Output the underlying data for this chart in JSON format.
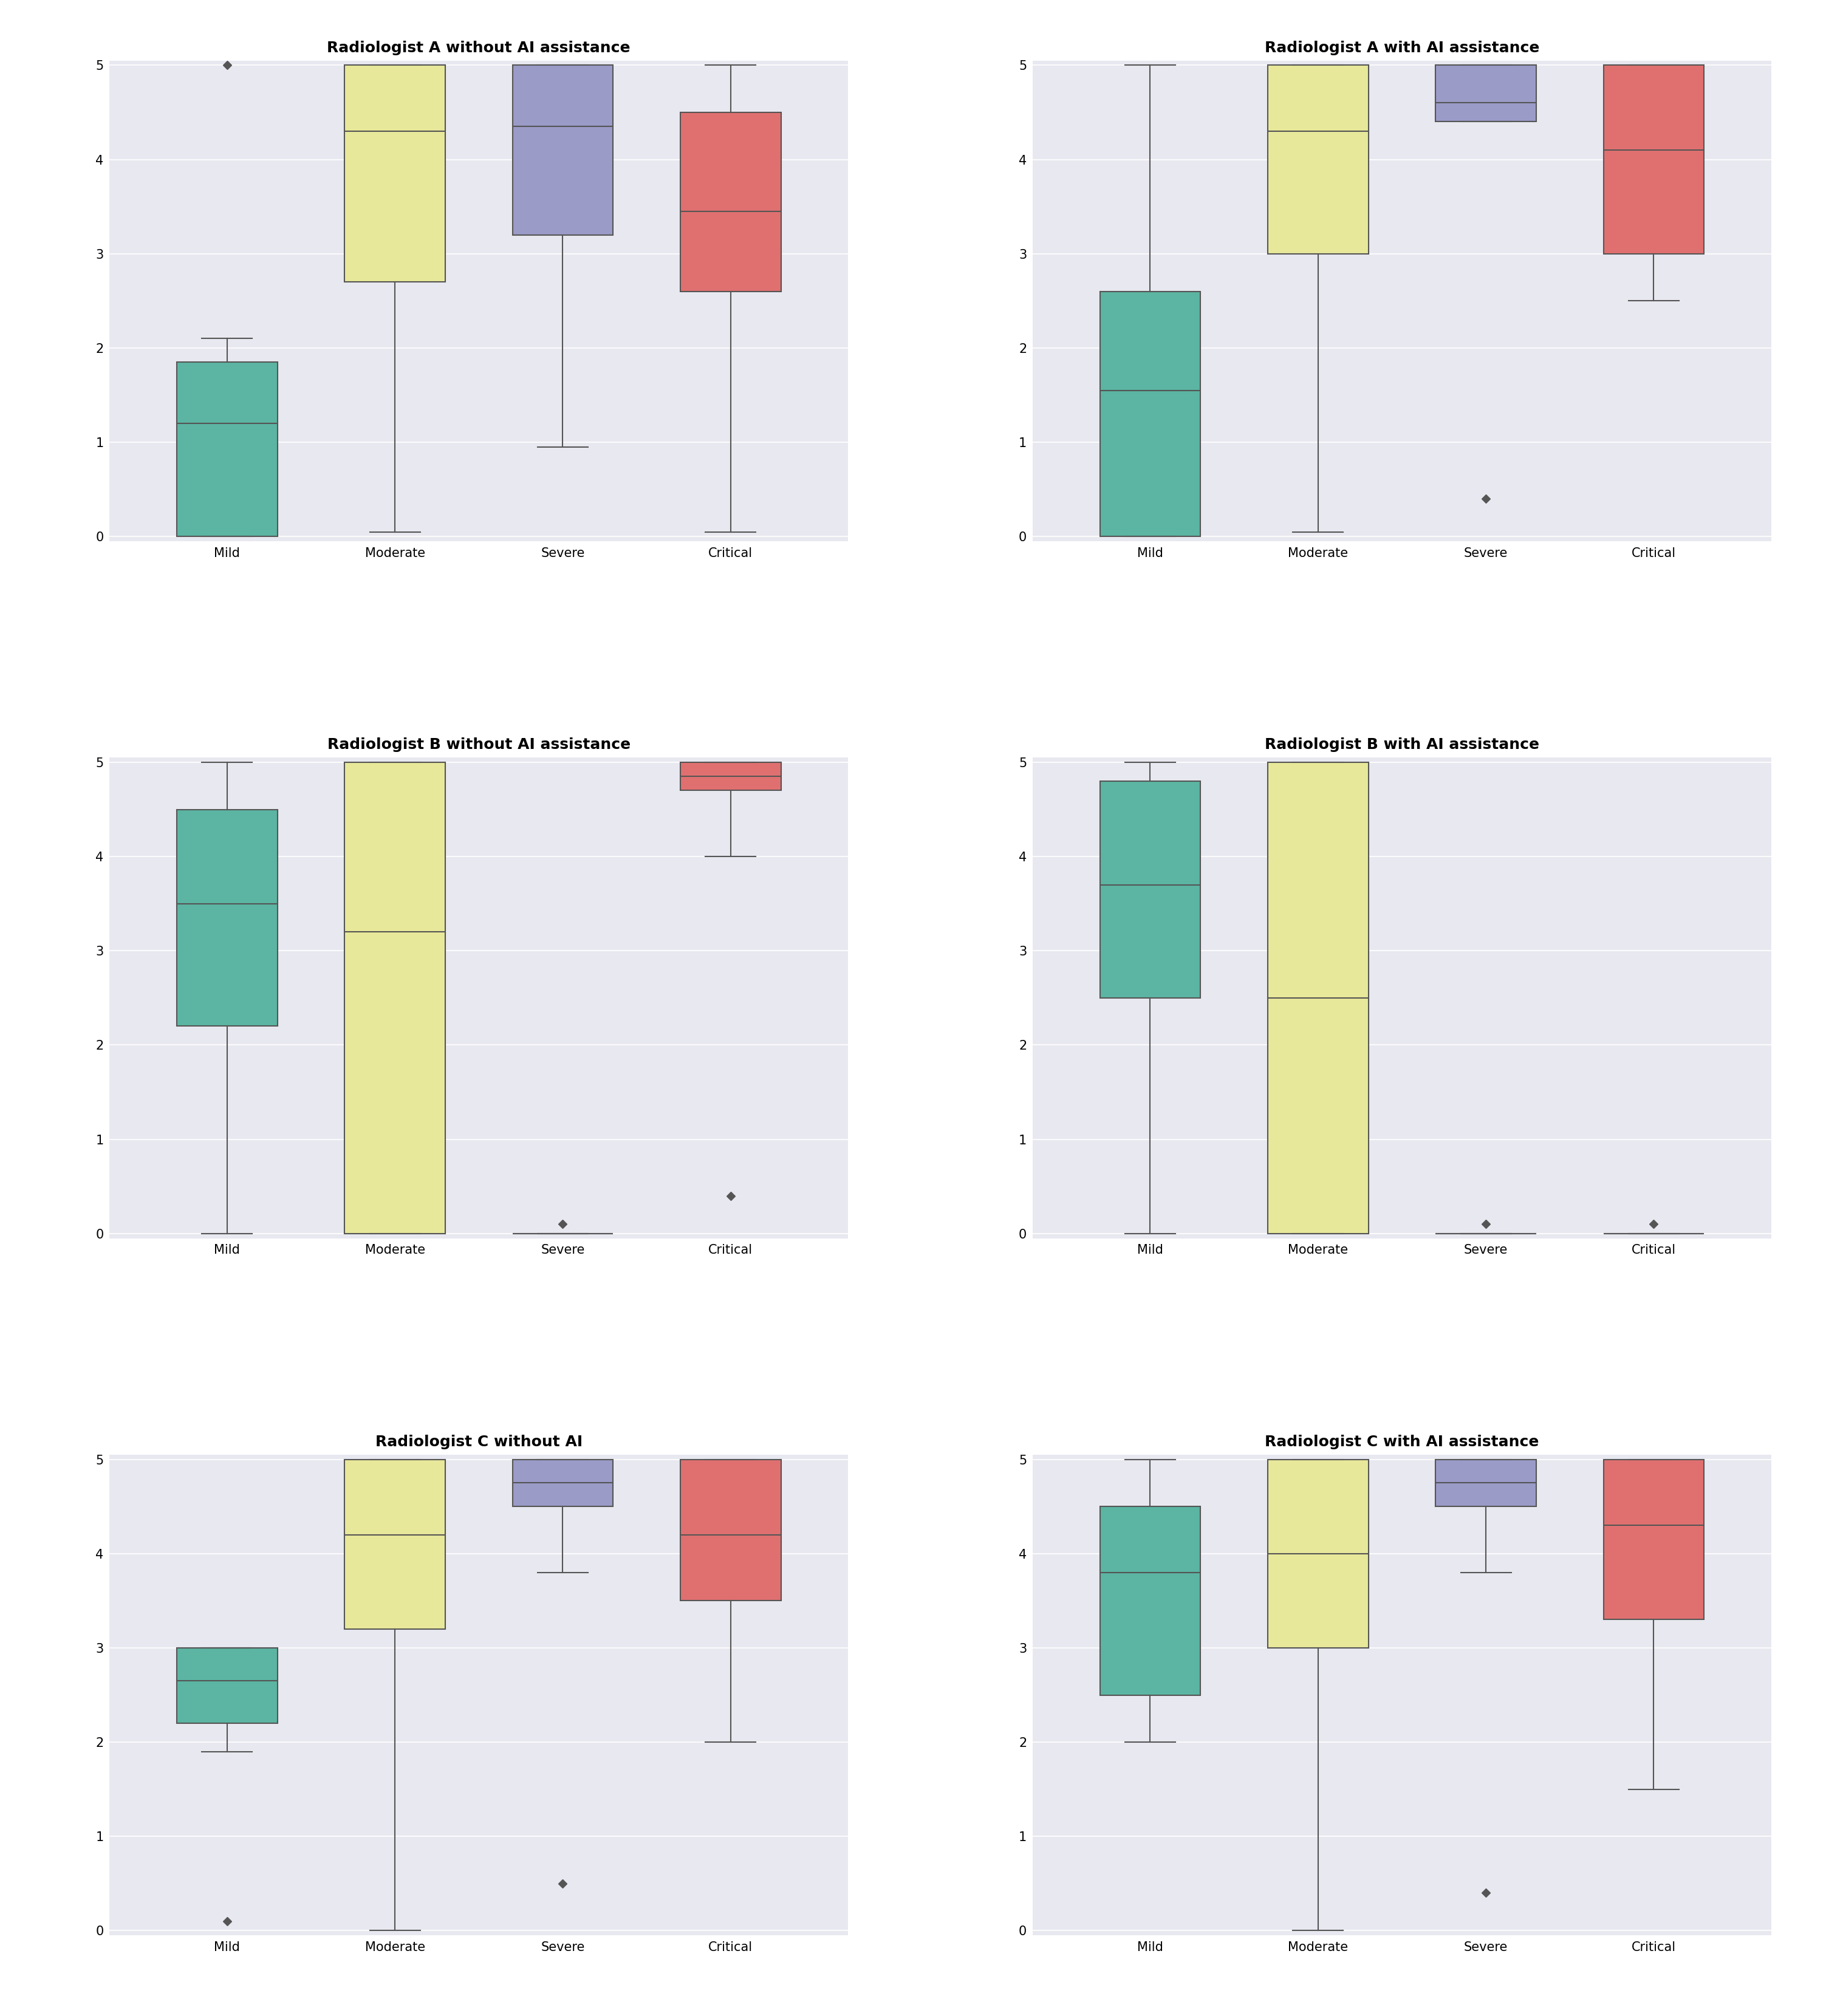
{
  "titles": [
    "Radiologist A without AI assistance",
    "Radiologist A with AI assistance",
    "Radiologist B without AI assistance",
    "Radiologist B with AI assistance",
    "Radiologist C without AI",
    "Radiologist C with AI assistance"
  ],
  "categories": [
    "Mild",
    "Moderate",
    "Severe",
    "Critical"
  ],
  "colors": [
    "#5bb5a2",
    "#e8e89a",
    "#9b9bc8",
    "#e07070"
  ],
  "background_color": "#e8e8f0",
  "box_edge_color": "#555555",
  "whisker_color": "#555555",
  "median_color": "#555555",
  "flier_color": "#555555",
  "plots": [
    {
      "name": "A_without",
      "mild": {
        "q1": 0.0,
        "median": 1.2,
        "q3": 1.85,
        "whislo": 0.0,
        "whishi": 2.1,
        "fliers": [
          5.0
        ]
      },
      "moderate": {
        "q1": 2.7,
        "median": 4.3,
        "q3": 5.0,
        "whislo": 0.05,
        "whishi": 5.0,
        "fliers": []
      },
      "severe": {
        "q1": 3.2,
        "median": 4.35,
        "q3": 5.0,
        "whislo": 0.95,
        "whishi": 5.0,
        "fliers": []
      },
      "critical": {
        "q1": 2.6,
        "median": 3.45,
        "q3": 4.5,
        "whislo": 0.05,
        "whishi": 5.0,
        "fliers": []
      }
    },
    {
      "name": "A_with",
      "mild": {
        "q1": 0.0,
        "median": 1.55,
        "q3": 2.6,
        "whislo": 0.0,
        "whishi": 5.0,
        "fliers": []
      },
      "moderate": {
        "q1": 3.0,
        "median": 4.3,
        "q3": 5.0,
        "whislo": 0.05,
        "whishi": 5.0,
        "fliers": []
      },
      "severe": {
        "q1": 4.4,
        "median": 4.6,
        "q3": 5.0,
        "whislo": 4.4,
        "whishi": 5.0,
        "fliers": [
          0.4
        ]
      },
      "critical": {
        "q1": 3.0,
        "median": 4.1,
        "q3": 5.0,
        "whislo": 2.5,
        "whishi": 5.0,
        "fliers": []
      }
    },
    {
      "name": "B_without",
      "mild": {
        "q1": 2.2,
        "median": 3.5,
        "q3": 4.5,
        "whislo": 0.0,
        "whishi": 5.0,
        "fliers": []
      },
      "moderate": {
        "q1": 0.0,
        "median": 3.2,
        "q3": 5.0,
        "whislo": 0.0,
        "whishi": 5.0,
        "fliers": []
      },
      "severe": {
        "q1": 0.0,
        "median": 0.0,
        "q3": 0.0,
        "whislo": 0.0,
        "whishi": 0.0,
        "fliers": [
          0.1
        ]
      },
      "critical": {
        "q1": 4.7,
        "median": 4.85,
        "q3": 5.0,
        "whislo": 4.0,
        "whishi": 5.0,
        "fliers": [
          0.4
        ]
      }
    },
    {
      "name": "B_with",
      "mild": {
        "q1": 2.5,
        "median": 3.7,
        "q3": 4.8,
        "whislo": 0.0,
        "whishi": 5.0,
        "fliers": []
      },
      "moderate": {
        "q1": 0.0,
        "median": 2.5,
        "q3": 5.0,
        "whislo": 0.0,
        "whishi": 5.0,
        "fliers": []
      },
      "severe": {
        "q1": 0.0,
        "median": 0.0,
        "q3": 0.0,
        "whislo": 0.0,
        "whishi": 0.0,
        "fliers": [
          0.1
        ]
      },
      "critical": {
        "q1": 0.0,
        "median": 0.0,
        "q3": 0.0,
        "whislo": 0.0,
        "whishi": 0.0,
        "fliers": [
          0.1
        ]
      }
    },
    {
      "name": "C_without",
      "mild": {
        "q1": 2.2,
        "median": 2.65,
        "q3": 3.0,
        "whislo": 1.9,
        "whishi": 3.0,
        "fliers": [
          0.1
        ]
      },
      "moderate": {
        "q1": 3.2,
        "median": 4.2,
        "q3": 5.0,
        "whislo": 0.0,
        "whishi": 5.0,
        "fliers": []
      },
      "severe": {
        "q1": 4.5,
        "median": 4.75,
        "q3": 5.0,
        "whislo": 3.8,
        "whishi": 5.0,
        "fliers": [
          0.5
        ]
      },
      "critical": {
        "q1": 3.5,
        "median": 4.2,
        "q3": 5.0,
        "whislo": 2.0,
        "whishi": 5.0,
        "fliers": []
      }
    },
    {
      "name": "C_with",
      "mild": {
        "q1": 2.5,
        "median": 3.8,
        "q3": 4.5,
        "whislo": 2.0,
        "whishi": 5.0,
        "fliers": []
      },
      "moderate": {
        "q1": 3.0,
        "median": 4.0,
        "q3": 5.0,
        "whislo": 0.0,
        "whishi": 5.0,
        "fliers": []
      },
      "severe": {
        "q1": 4.5,
        "median": 4.75,
        "q3": 5.0,
        "whislo": 3.8,
        "whishi": 5.0,
        "fliers": [
          0.4
        ]
      },
      "critical": {
        "q1": 3.3,
        "median": 4.3,
        "q3": 5.0,
        "whislo": 1.5,
        "whishi": 5.0,
        "fliers": []
      }
    }
  ],
  "ylim": [
    0,
    5
  ],
  "yticks": [
    0,
    1,
    2,
    3,
    4,
    5
  ],
  "title_fontsize": 18,
  "tick_fontsize": 15,
  "label_fontsize": 16,
  "hspace": 0.45,
  "wspace": 0.25
}
